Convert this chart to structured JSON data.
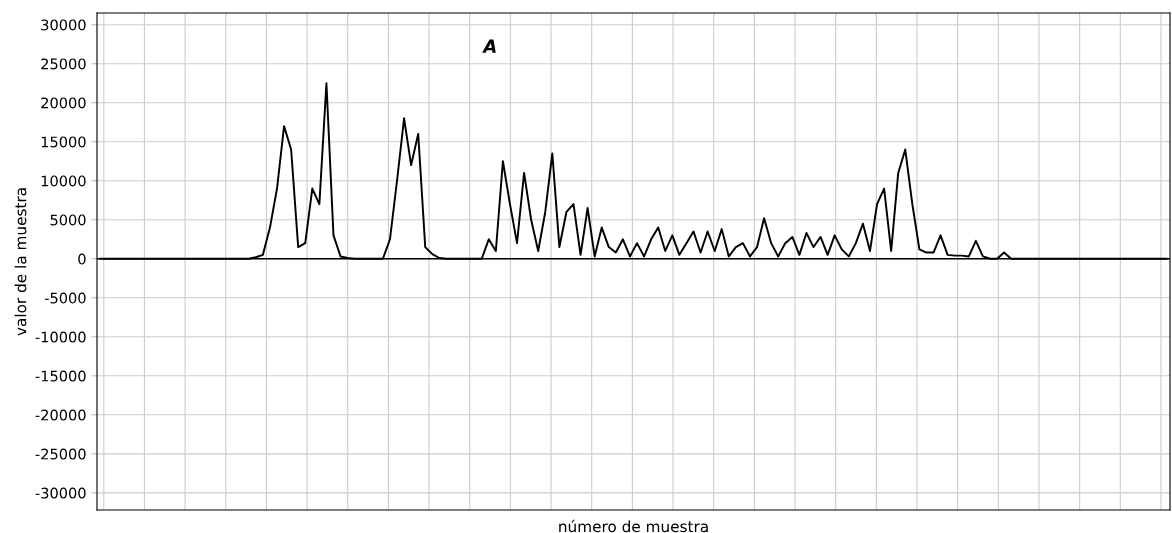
{
  "chart_data": {
    "type": "line",
    "xlabel": "número de muestra",
    "ylabel": "valor de la muestra",
    "annotations": [
      "A"
    ],
    "categories": [
      null,
      null,
      null,
      null,
      null,
      null,
      null,
      null,
      null,
      null,
      null,
      null,
      null,
      null,
      null,
      null,
      null,
      null,
      null,
      null,
      null,
      null,
      null,
      null,
      null,
      null,
      null,
      null,
      null,
      null,
      null,
      null,
      null,
      null,
      null,
      null,
      null,
      null,
      null,
      null,
      null,
      null,
      null,
      null,
      null,
      null,
      null,
      null,
      null,
      null,
      null,
      null,
      null,
      null,
      null,
      null,
      null,
      null,
      null,
      null,
      null,
      null,
      null,
      null,
      null,
      null,
      null,
      null,
      null,
      null,
      null,
      null,
      null,
      null,
      null,
      null,
      null,
      null,
      null,
      null,
      null,
      null,
      null,
      null,
      null,
      null,
      null,
      null,
      null,
      null,
      null,
      null,
      null,
      null,
      null,
      null,
      null,
      null,
      null,
      null,
      null,
      null,
      null,
      null,
      null,
      null,
      null,
      null,
      null,
      null,
      null,
      null,
      null,
      null,
      null,
      null,
      null,
      null,
      null,
      null,
      null,
      null,
      null,
      null,
      null,
      null,
      null,
      null,
      null,
      null,
      null,
      null,
      null,
      null,
      null,
      null,
      null,
      null,
      null,
      null,
      null,
      null,
      null,
      null,
      null,
      null,
      null,
      null,
      null,
      null,
      null,
      null
    ],
    "series": [
      {
        "color": "#000000",
        "values": [
          0,
          0,
          0,
          0,
          0,
          0,
          0,
          0,
          0,
          0,
          0,
          0,
          0,
          0,
          0,
          0,
          0,
          0,
          0,
          0,
          0,
          0,
          200,
          500,
          4000,
          9000,
          17000,
          14000,
          1500,
          2000,
          9000,
          7000,
          22500,
          3000,
          300,
          100,
          0,
          0,
          0,
          0,
          0,
          2500,
          10000,
          18000,
          12000,
          16000,
          1500,
          600,
          100,
          0,
          0,
          0,
          0,
          0,
          0,
          2500,
          1000,
          12500,
          7000,
          2000,
          11000,
          5000,
          1000,
          6000,
          13500,
          1500,
          6000,
          7000,
          500,
          6500,
          300,
          4000,
          1500,
          800,
          2500,
          300,
          2000,
          300,
          2500,
          4000,
          1000,
          3000,
          500,
          2000,
          3500,
          800,
          3500,
          1000,
          3800,
          300,
          1500,
          2000,
          300,
          1500,
          5200,
          2000,
          300,
          2000,
          2800,
          500,
          3300,
          1500,
          2800,
          500,
          3000,
          1200,
          300,
          2000,
          4500,
          1000,
          7000,
          9000,
          1000,
          11000,
          14000,
          7000,
          1200,
          800,
          800,
          3000,
          500,
          400,
          400,
          300,
          2300,
          300,
          0,
          0,
          800,
          0,
          0,
          0,
          0,
          0,
          0,
          0,
          0,
          0,
          0,
          0,
          0,
          0,
          0,
          0,
          0,
          0,
          0,
          0,
          0,
          0,
          0,
          0
        ]
      }
    ],
    "ylim": [
      -32200,
      31500
    ],
    "yticks": [
      -30000,
      -25000,
      -20000,
      -15000,
      -10000,
      -5000,
      0,
      5000,
      10000,
      15000,
      20000,
      25000,
      30000
    ],
    "grid": true,
    "marker": "none",
    "line_style": "solid"
  }
}
